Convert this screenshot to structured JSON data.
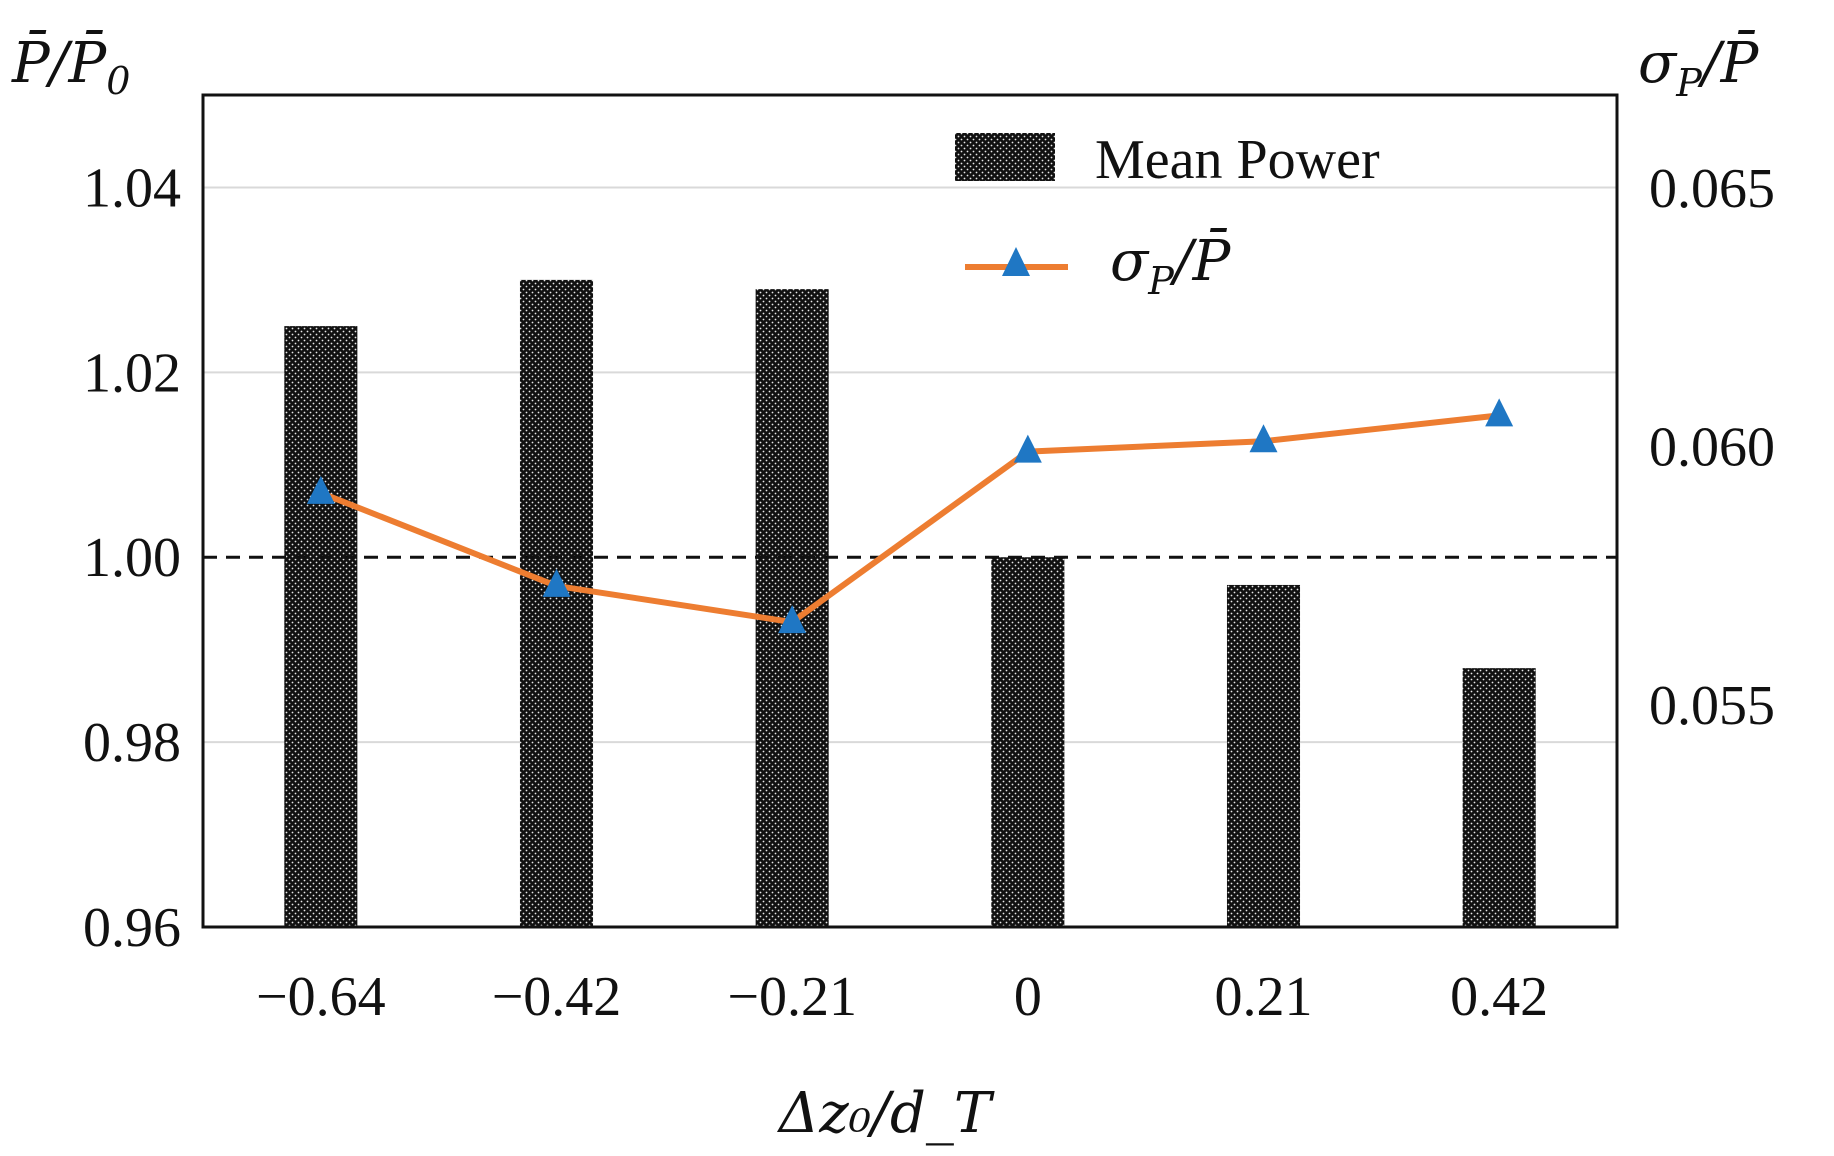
{
  "chart_data": {
    "type": "bar+line",
    "xlabel": "Δz₀/d_T",
    "categories": [
      "−0.64",
      "−0.42",
      "−0.21",
      "0",
      "0.21",
      "0.42"
    ],
    "y_left": {
      "label_main": "P̄/P̄",
      "label_sub": "0",
      "ylim": [
        0.96,
        1.05
      ],
      "ticks": [
        "1.04",
        "1.02",
        "1.00",
        "0.98",
        "0.96"
      ],
      "tick_values": [
        1.04,
        1.02,
        1.0,
        0.98,
        0.96
      ]
    },
    "y_right": {
      "label_main": "σ",
      "label_sub": "P",
      "label_tail": "/P̄",
      "ylim": [
        0.0507,
        0.0668
      ],
      "ticks": [
        "0.065",
        "0.060",
        "0.055"
      ],
      "tick_values": [
        0.065,
        0.06,
        0.055
      ]
    },
    "reference_line": 1.0,
    "series": [
      {
        "name": "Mean Power",
        "type": "bar",
        "axis": "left",
        "color": "#111111",
        "values": [
          1.025,
          1.03,
          1.029,
          1.0,
          0.997,
          0.988
        ]
      },
      {
        "name": "σ_P/P̄",
        "type": "line",
        "axis": "right",
        "line_color": "#ed7d31",
        "marker_color": "#1f77c4",
        "values": [
          0.0591,
          0.0573,
          0.0566,
          0.0599,
          0.0601,
          0.0606
        ]
      }
    ],
    "legend": {
      "bar_label": "Mean Power",
      "line_label_main": "σ",
      "line_label_sub": "P",
      "line_label_tail": "/P̄",
      "position": "top-right"
    },
    "grid": true
  }
}
